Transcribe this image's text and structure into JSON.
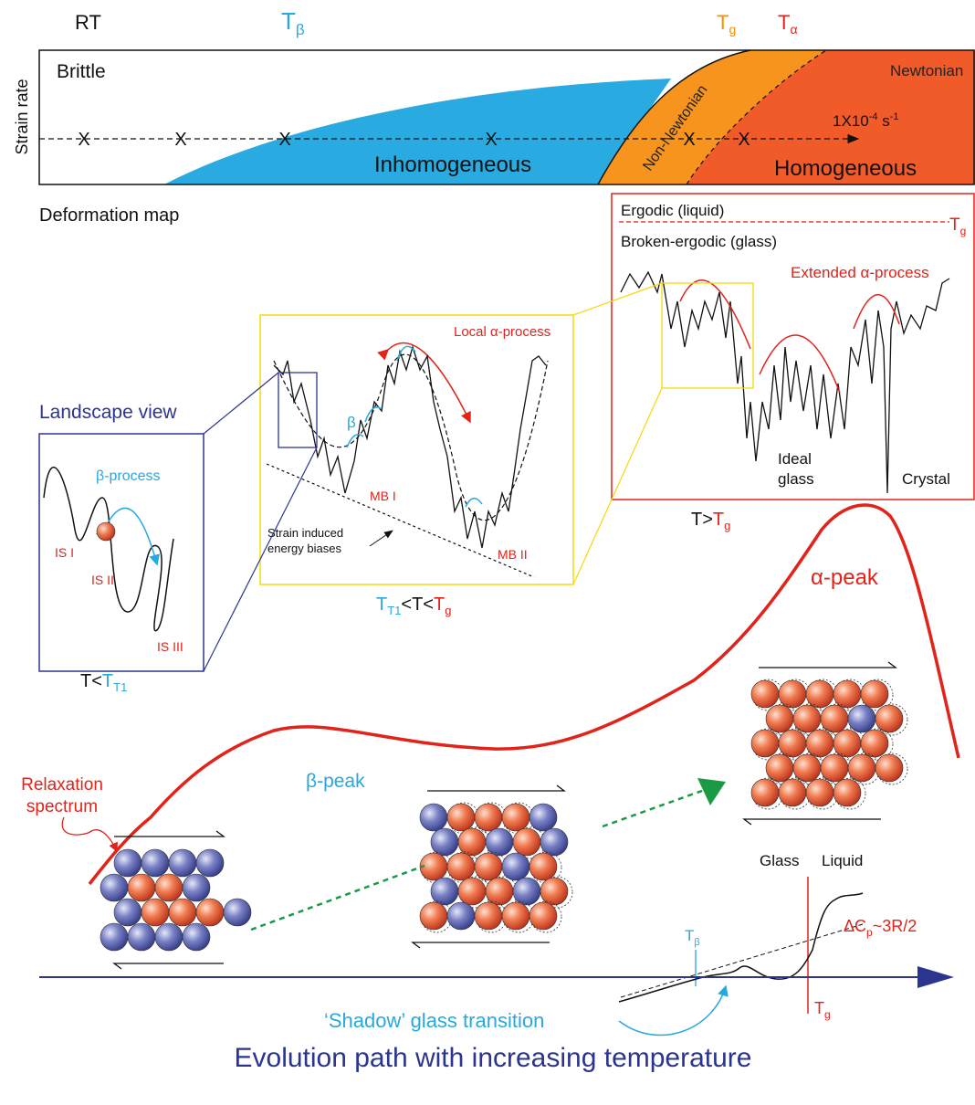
{
  "temperatures": {
    "rt": "RT",
    "t_beta": {
      "base": "T",
      "sub": "β"
    },
    "t_g": {
      "base": "T",
      "sub": "g"
    },
    "t_alpha": {
      "base": "T",
      "sub": "α"
    }
  },
  "deformation_map": {
    "y_label": "Strain rate",
    "brittle": "Brittle",
    "newtonian": "Newtonian",
    "non_newtonian": "Non-Newtonian",
    "inhomogeneous": "Inhomogeneous",
    "homogeneous": "Homogeneous",
    "rate": {
      "base": "1X10",
      "exp": "-4",
      "unit": " s",
      "unit_exp": "-1"
    },
    "markers": [
      "X",
      "X",
      "X",
      "X",
      "X",
      "X"
    ],
    "caption": "Deformation map"
  },
  "high_t": {
    "ergodic": "Ergodic (liquid)",
    "t_g": {
      "base": "T",
      "sub": "g"
    },
    "broken": "Broken-ergodic (glass)",
    "extended": "Extended α-process",
    "ideal_glass": [
      "Ideal",
      "glass"
    ],
    "crystal": "Crystal",
    "caption": {
      "prefix": "T>",
      "base": "T",
      "sub": "g"
    }
  },
  "mid_t": {
    "local": "Local α-process",
    "beta": "β",
    "mb1": "MB I",
    "mb2": "MB II",
    "biases": [
      "Strain induced",
      "energy biases"
    ],
    "caption": {
      "low_base": "T",
      "low_sub": "T1",
      "middle": "<T<",
      "high_base": "T",
      "high_sub": "g"
    }
  },
  "low_t": {
    "title": "Landscape view",
    "beta_process": "β-process",
    "is1": "IS I",
    "is2": "IS II",
    "is3": "IS III",
    "caption": {
      "prefix": "T<",
      "base": "T",
      "sub": "T1"
    }
  },
  "spectrum": {
    "alpha_peak": "α-peak",
    "beta_peak": "β-peak",
    "label": [
      "Relaxation",
      "spectrum"
    ]
  },
  "dsc": {
    "glass": "Glass",
    "liquid": "Liquid",
    "delta_cp": {
      "base": "ΔC",
      "sub": "p",
      "rest": "~3R/2"
    },
    "t_beta": {
      "base": "T",
      "sub": "β"
    },
    "t_g": {
      "base": "T",
      "sub": "g"
    },
    "shadow": "‘Shadow’ glass transition"
  },
  "footer": "Evolution path with increasing temperature"
}
